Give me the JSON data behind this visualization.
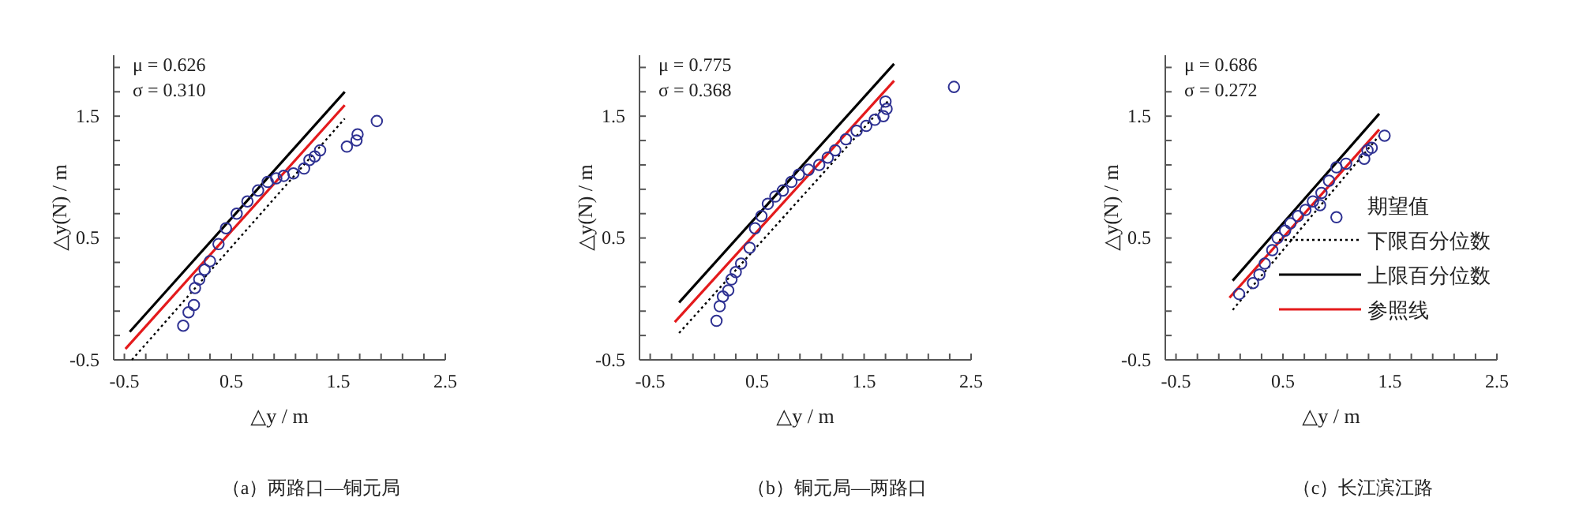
{
  "chart_data": [
    {
      "type": "scatter",
      "title": "（a）两路口—铜元局",
      "xlabel": "△y / m",
      "ylabel": "△y(N) / m",
      "annotations": [
        "μ = 0.626",
        "σ = 0.310"
      ],
      "xlim": [
        -0.6,
        2.5
      ],
      "ylim": [
        -0.5,
        2.0
      ],
      "xticks": [
        -0.5,
        {
          "value": -0.3,
          "label": null
        },
        {
          "value": -0.1,
          "label": null
        },
        {
          "value": 0.1,
          "label": null
        },
        {
          "value": 0.3,
          "label": null
        },
        0.5,
        {
          "value": 0.7,
          "label": null
        },
        {
          "value": 0.9,
          "label": null
        },
        {
          "value": 1.1,
          "label": null
        },
        {
          "value": 1.3,
          "label": null
        },
        1.5,
        {
          "value": 1.7,
          "label": null
        },
        {
          "value": 1.9,
          "label": null
        },
        {
          "value": 2.1,
          "label": null
        },
        {
          "value": 2.3,
          "label": null
        },
        2.5
      ],
      "yticks": [
        -0.5,
        {
          "value": -0.3,
          "label": null
        },
        {
          "value": -0.1,
          "label": null
        },
        {
          "value": 0.1,
          "label": null
        },
        {
          "value": 0.3,
          "label": null
        },
        0.5,
        {
          "value": 0.7,
          "label": null
        },
        {
          "value": 0.9,
          "label": null
        },
        {
          "value": 1.1,
          "label": null
        },
        {
          "value": 1.3,
          "label": null
        },
        1.5,
        {
          "value": 1.7,
          "label": null
        },
        {
          "value": 1.9,
          "label": null
        }
      ],
      "series": [
        {
          "marker": "circle",
          "color": "#2e3192",
          "x": [
            0.05,
            0.1,
            0.15,
            0.16,
            0.2,
            0.25,
            0.3,
            0.38,
            0.45,
            0.55,
            0.65,
            0.75,
            0.84,
            0.92,
            0.99,
            1.08,
            1.18,
            1.23,
            1.28,
            1.33,
            1.58,
            1.67,
            1.68,
            1.86
          ],
          "values": [
            -0.22,
            -0.11,
            -0.05,
            0.09,
            0.16,
            0.24,
            0.31,
            0.45,
            0.58,
            0.7,
            0.8,
            0.89,
            0.96,
            0.99,
            1.01,
            1.03,
            1.07,
            1.14,
            1.17,
            1.22,
            1.25,
            1.3,
            1.35,
            1.46
          ]
        },
        {
          "type": "line",
          "line_style": "dotted",
          "color": "#000000",
          "x": [
            -0.43,
            1.56
          ],
          "values": [
            -0.5,
            1.48
          ]
        },
        {
          "type": "line",
          "line_style": "solid",
          "color": "#000000",
          "x": [
            -0.45,
            1.56
          ],
          "values": [
            -0.27,
            1.7
          ]
        },
        {
          "type": "line",
          "line_style": "solid",
          "color": "#e41a1c",
          "x": [
            -0.49,
            1.56
          ],
          "values": [
            -0.41,
            1.59
          ]
        }
      ]
    },
    {
      "type": "scatter",
      "title": "（b）铜元局—两路口",
      "xlabel": "△y / m",
      "ylabel": "△y(N) / m",
      "annotations": [
        "μ = 0.775",
        "σ = 0.368"
      ],
      "xlim": [
        -0.6,
        2.5
      ],
      "ylim": [
        -0.5,
        2.0
      ],
      "xticks": [
        -0.5,
        {
          "value": -0.3,
          "label": null
        },
        {
          "value": -0.1,
          "label": null
        },
        {
          "value": 0.1,
          "label": null
        },
        {
          "value": 0.3,
          "label": null
        },
        0.5,
        {
          "value": 0.7,
          "label": null
        },
        {
          "value": 0.9,
          "label": null
        },
        {
          "value": 1.1,
          "label": null
        },
        {
          "value": 1.3,
          "label": null
        },
        1.5,
        {
          "value": 1.7,
          "label": null
        },
        {
          "value": 1.9,
          "label": null
        },
        {
          "value": 2.1,
          "label": null
        },
        {
          "value": 2.3,
          "label": null
        },
        2.5
      ],
      "yticks": [
        -0.5,
        {
          "value": -0.3,
          "label": null
        },
        {
          "value": -0.1,
          "label": null
        },
        {
          "value": 0.1,
          "label": null
        },
        {
          "value": 0.3,
          "label": null
        },
        0.5,
        {
          "value": 0.7,
          "label": null
        },
        {
          "value": 0.9,
          "label": null
        },
        {
          "value": 1.1,
          "label": null
        },
        {
          "value": 1.3,
          "label": null
        },
        1.5,
        {
          "value": 1.7,
          "label": null
        },
        {
          "value": 1.9,
          "label": null
        }
      ],
      "series": [
        {
          "marker": "circle",
          "color": "#2e3192",
          "x": [
            0.12,
            0.15,
            0.18,
            0.23,
            0.26,
            0.3,
            0.35,
            0.43,
            0.48,
            0.54,
            0.6,
            0.67,
            0.74,
            0.82,
            0.89,
            0.98,
            1.08,
            1.16,
            1.23,
            1.33,
            1.43,
            1.52,
            1.6,
            1.68,
            1.71,
            1.7,
            2.34
          ],
          "values": [
            -0.18,
            -0.06,
            0.02,
            0.07,
            0.16,
            0.22,
            0.29,
            0.42,
            0.58,
            0.68,
            0.78,
            0.84,
            0.89,
            0.96,
            1.02,
            1.06,
            1.1,
            1.16,
            1.22,
            1.31,
            1.38,
            1.42,
            1.47,
            1.5,
            1.56,
            1.62,
            1.74
          ]
        },
        {
          "type": "line",
          "line_style": "dotted",
          "color": "#000000",
          "x": [
            -0.23,
            1.72
          ],
          "values": [
            -0.28,
            1.62
          ]
        },
        {
          "type": "line",
          "line_style": "solid",
          "color": "#000000",
          "x": [
            -0.23,
            1.78
          ],
          "values": [
            -0.03,
            1.93
          ]
        },
        {
          "type": "line",
          "line_style": "solid",
          "color": "#e41a1c",
          "x": [
            -0.27,
            1.78
          ],
          "values": [
            -0.19,
            1.79
          ]
        }
      ]
    },
    {
      "type": "scatter",
      "title": "（c）长江滨江路",
      "xlabel": "△y / m",
      "ylabel": "△y(N) / m",
      "annotations": [
        "μ = 0.686",
        "σ = 0.272"
      ],
      "legend": "right",
      "xlim": [
        -0.6,
        2.5
      ],
      "ylim": [
        -0.5,
        2.0
      ],
      "xticks": [
        -0.5,
        {
          "value": -0.3,
          "label": null
        },
        {
          "value": -0.1,
          "label": null
        },
        {
          "value": 0.1,
          "label": null
        },
        {
          "value": 0.3,
          "label": null
        },
        0.5,
        {
          "value": 0.7,
          "label": null
        },
        {
          "value": 0.9,
          "label": null
        },
        {
          "value": 1.1,
          "label": null
        },
        {
          "value": 1.3,
          "label": null
        },
        1.5,
        {
          "value": 1.7,
          "label": null
        },
        {
          "value": 1.9,
          "label": null
        },
        {
          "value": 2.1,
          "label": null
        },
        {
          "value": 2.3,
          "label": null
        },
        2.5
      ],
      "yticks": [
        -0.5,
        {
          "value": -0.3,
          "label": null
        },
        {
          "value": -0.1,
          "label": null
        },
        {
          "value": 0.1,
          "label": null
        },
        {
          "value": 0.3,
          "label": null
        },
        0.5,
        {
          "value": 0.7,
          "label": null
        },
        {
          "value": 0.9,
          "label": null
        },
        {
          "value": 1.1,
          "label": null
        },
        {
          "value": 1.3,
          "label": null
        },
        1.5,
        {
          "value": 1.7,
          "label": null
        },
        {
          "value": 1.9,
          "label": null
        }
      ],
      "series": [
        {
          "name": "期望值",
          "marker": "circle",
          "color": "#2e3192",
          "x": [
            0.09,
            0.22,
            0.28,
            0.33,
            0.4,
            0.45,
            0.52,
            0.57,
            0.64,
            0.71,
            0.78,
            0.86,
            0.93,
            1.0,
            1.0,
            1.09,
            1.26,
            1.29,
            1.33,
            1.45
          ],
          "values": [
            0.04,
            0.13,
            0.2,
            0.29,
            0.4,
            0.5,
            0.56,
            0.62,
            0.68,
            0.73,
            0.8,
            0.87,
            0.97,
            1.08,
            0.67,
            1.11,
            1.15,
            1.22,
            1.24,
            1.34
          ]
        },
        {
          "name": "下限百分位数",
          "type": "line",
          "line_style": "dotted",
          "color": "#000000",
          "x": [
            0.03,
            1.4
          ],
          "values": [
            -0.09,
            1.34
          ]
        },
        {
          "name": "上限百分位数",
          "type": "line",
          "line_style": "solid",
          "color": "#000000",
          "x": [
            0.03,
            1.4
          ],
          "values": [
            0.15,
            1.52
          ]
        },
        {
          "name": "参照线",
          "type": "line",
          "line_style": "solid",
          "color": "#e41a1c",
          "x": [
            0.0,
            1.4
          ],
          "values": [
            0.01,
            1.39
          ]
        }
      ]
    }
  ]
}
